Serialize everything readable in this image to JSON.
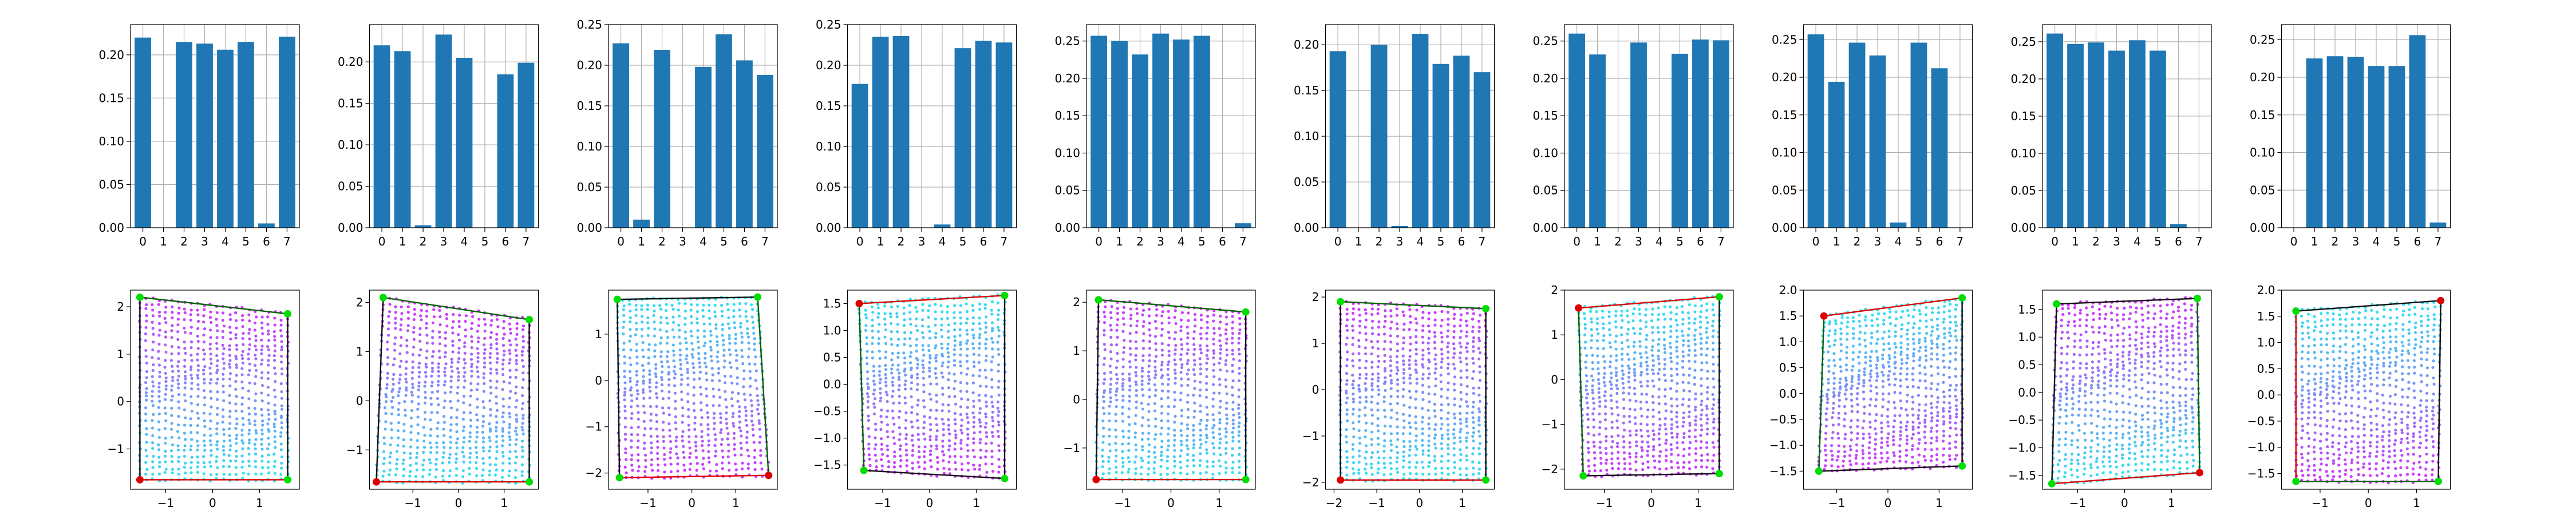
{
  "figure": {
    "background": "#ffffff",
    "bar_color": "#1f77b4",
    "grid_color": "#b0b0b0"
  },
  "chart_data": [
    {
      "type": "bar",
      "categories": [
        "0",
        "1",
        "2",
        "3",
        "4",
        "5",
        "6",
        "7"
      ],
      "values": [
        0.22,
        0,
        0.215,
        0.213,
        0.206,
        0.215,
        0.005,
        0.221
      ],
      "ylim": [
        0,
        0.235
      ],
      "yticks": [
        "0.00",
        "0.05",
        "0.10",
        "0.15",
        "0.20"
      ],
      "grid": true
    },
    {
      "type": "bar",
      "categories": [
        "0",
        "1",
        "2",
        "3",
        "4",
        "5",
        "6",
        "7"
      ],
      "values": [
        0.22,
        0.213,
        0.003,
        0.233,
        0.205,
        0,
        0.185,
        0.199
      ],
      "ylim": [
        0,
        0.245
      ],
      "yticks": [
        "0.00",
        "0.05",
        "0.10",
        "0.15",
        "0.20"
      ],
      "grid": true
    },
    {
      "type": "bar",
      "categories": [
        "0",
        "1",
        "2",
        "3",
        "4",
        "5",
        "6",
        "7"
      ],
      "values": [
        0.227,
        0.01,
        0.219,
        0,
        0.198,
        0.238,
        0.206,
        0.188
      ],
      "ylim": [
        0,
        0.25
      ],
      "yticks": [
        "0.00",
        "0.05",
        "0.10",
        "0.15",
        "0.20",
        "0.25"
      ],
      "grid": true
    },
    {
      "type": "bar",
      "categories": [
        "0",
        "1",
        "2",
        "3",
        "4",
        "5",
        "6",
        "7"
      ],
      "values": [
        0.177,
        0.235,
        0.236,
        0,
        0.004,
        0.221,
        0.23,
        0.228
      ],
      "ylim": [
        0,
        0.25
      ],
      "yticks": [
        "0.00",
        "0.05",
        "0.10",
        "0.15",
        "0.20",
        "0.25"
      ],
      "grid": true
    },
    {
      "type": "bar",
      "categories": [
        "0",
        "1",
        "2",
        "3",
        "4",
        "5",
        "6",
        "7"
      ],
      "values": [
        0.257,
        0.25,
        0.232,
        0.26,
        0.252,
        0.257,
        0,
        0.006
      ],
      "ylim": [
        0,
        0.272
      ],
      "yticks": [
        "0.00",
        "0.05",
        "0.10",
        "0.15",
        "0.20",
        "0.25"
      ],
      "grid": true
    },
    {
      "type": "bar",
      "categories": [
        "0",
        "1",
        "2",
        "3",
        "4",
        "5",
        "6",
        "7"
      ],
      "values": [
        0.193,
        0,
        0.2,
        0.002,
        0.212,
        0.179,
        0.188,
        0.17
      ],
      "ylim": [
        0,
        0.222
      ],
      "yticks": [
        "0.00",
        "0.05",
        "0.10",
        "0.15",
        "0.20"
      ],
      "grid": true
    },
    {
      "type": "bar",
      "categories": [
        "0",
        "1",
        "2",
        "3",
        "4",
        "5",
        "6",
        "7"
      ],
      "values": [
        0.26,
        0.232,
        0,
        0.248,
        0,
        0.233,
        0.252,
        0.251
      ],
      "ylim": [
        0,
        0.272
      ],
      "yticks": [
        "0.00",
        "0.05",
        "0.10",
        "0.15",
        "0.20",
        "0.25"
      ],
      "grid": true
    },
    {
      "type": "bar",
      "categories": [
        "0",
        "1",
        "2",
        "3",
        "4",
        "5",
        "6",
        "7"
      ],
      "values": [
        0.257,
        0.194,
        0.246,
        0.229,
        0.007,
        0.246,
        0.212,
        0
      ],
      "ylim": [
        0,
        0.27
      ],
      "yticks": [
        "0.00",
        "0.05",
        "0.10",
        "0.15",
        "0.20",
        "0.25"
      ],
      "grid": true
    },
    {
      "type": "bar",
      "categories": [
        "0",
        "1",
        "2",
        "3",
        "4",
        "5",
        "6",
        "7"
      ],
      "values": [
        0.261,
        0.247,
        0.249,
        0.238,
        0.252,
        0.238,
        0.005,
        0
      ],
      "ylim": [
        0,
        0.273
      ],
      "yticks": [
        "0.00",
        "0.05",
        "0.10",
        "0.15",
        "0.20",
        "0.25"
      ],
      "grid": true
    },
    {
      "type": "bar",
      "categories": [
        "0",
        "1",
        "2",
        "3",
        "4",
        "5",
        "6",
        "7"
      ],
      "values": [
        0,
        0.225,
        0.228,
        0.227,
        0.215,
        0.215,
        0.256,
        0.007
      ],
      "ylim": [
        0,
        0.27
      ],
      "yticks": [
        "0.00",
        "0.05",
        "0.10",
        "0.15",
        "0.20",
        "0.25"
      ],
      "grid": true
    },
    {
      "type": "scatter",
      "xlim": [
        -1.75,
        1.85
      ],
      "ylim": [
        -1.85,
        2.35
      ],
      "xticks": [
        -1,
        0,
        1
      ],
      "yticks": [
        -1,
        0,
        1,
        2
      ],
      "quad": [
        [
          -1.55,
          2.2
        ],
        [
          1.6,
          1.85
        ],
        [
          1.6,
          -1.65
        ],
        [
          -1.55,
          -1.65
        ]
      ],
      "colors": [
        "#d535ff",
        "#2ee5f2"
      ],
      "corners": [
        "#00dd00",
        "#00dd00",
        "#00dd00",
        "#dd0000"
      ],
      "edges": [
        "#006400",
        "#111111",
        "#dd0000",
        "#111111"
      ],
      "seed": 11
    },
    {
      "type": "scatter",
      "xlim": [
        -1.95,
        1.75
      ],
      "ylim": [
        -1.8,
        2.25
      ],
      "xticks": [
        -1,
        0,
        1
      ],
      "yticks": [
        -1,
        0,
        1,
        2
      ],
      "quad": [
        [
          -1.65,
          2.1
        ],
        [
          1.55,
          1.65
        ],
        [
          1.55,
          -1.65
        ],
        [
          -1.8,
          -1.65
        ]
      ],
      "colors": [
        "#d535ff",
        "#2ee5f2"
      ],
      "corners": [
        "#00dd00",
        "#00dd00",
        "#00dd00",
        "#dd0000"
      ],
      "edges": [
        "#006400",
        "#111111",
        "#dd0000",
        "#111111"
      ],
      "seed": 23
    },
    {
      "type": "scatter",
      "xlim": [
        -1.9,
        1.95
      ],
      "ylim": [
        -2.35,
        1.95
      ],
      "xticks": [
        -1,
        0,
        1
      ],
      "yticks": [
        -2,
        -1,
        0,
        1
      ],
      "quad": [
        [
          -1.7,
          1.75
        ],
        [
          1.5,
          1.8
        ],
        [
          1.75,
          -2.05
        ],
        [
          -1.65,
          -2.1
        ]
      ],
      "colors": [
        "#2ee5f2",
        "#d535ff"
      ],
      "corners": [
        "#00dd00",
        "#00dd00",
        "#dd0000",
        "#00dd00"
      ],
      "edges": [
        "#111111",
        "#006400",
        "#dd0000",
        "#111111"
      ],
      "seed": 37
    },
    {
      "type": "scatter",
      "xlim": [
        -1.75,
        1.85
      ],
      "ylim": [
        -1.95,
        1.75
      ],
      "xticks": [
        -1,
        0,
        1
      ],
      "yticks": [
        -1.5,
        -1.0,
        -0.5,
        0.0,
        0.5,
        1.0,
        1.5
      ],
      "ytick_labels": [
        "-1.5",
        "-1.0",
        "-0.5",
        "0.0",
        "0.5",
        "1.0",
        "1.5"
      ],
      "quad": [
        [
          -1.5,
          1.5
        ],
        [
          1.6,
          1.65
        ],
        [
          1.6,
          -1.75
        ],
        [
          -1.4,
          -1.6
        ]
      ],
      "colors": [
        "#2ee5f2",
        "#d535ff"
      ],
      "corners": [
        "#dd0000",
        "#00dd00",
        "#00dd00",
        "#00dd00"
      ],
      "edges": [
        "#dd0000",
        "#111111",
        "#111111",
        "#006400"
      ],
      "seed": 41
    },
    {
      "type": "scatter",
      "xlim": [
        -1.75,
        1.75
      ],
      "ylim": [
        -1.85,
        2.25
      ],
      "xticks": [
        -1,
        0,
        1
      ],
      "yticks": [
        -1,
        0,
        1,
        2
      ],
      "quad": [
        [
          -1.5,
          2.05
        ],
        [
          1.55,
          1.8
        ],
        [
          1.55,
          -1.65
        ],
        [
          -1.55,
          -1.65
        ]
      ],
      "colors": [
        "#d535ff",
        "#2ee5f2"
      ],
      "corners": [
        "#00dd00",
        "#00dd00",
        "#00dd00",
        "#dd0000"
      ],
      "edges": [
        "#006400",
        "#111111",
        "#dd0000",
        "#111111"
      ],
      "seed": 53
    },
    {
      "type": "scatter",
      "xlim": [
        -2.2,
        1.75
      ],
      "ylim": [
        -2.15,
        2.15
      ],
      "xticks": [
        -2,
        -1,
        0,
        1
      ],
      "yticks": [
        -2,
        -1,
        0,
        1,
        2
      ],
      "quad": [
        [
          -1.85,
          1.9
        ],
        [
          1.55,
          1.75
        ],
        [
          1.55,
          -1.95
        ],
        [
          -1.85,
          -1.95
        ]
      ],
      "colors": [
        "#d535ff",
        "#2ee5f2"
      ],
      "corners": [
        "#00dd00",
        "#00dd00",
        "#00dd00",
        "#dd0000"
      ],
      "edges": [
        "#006400",
        "#111111",
        "#dd0000",
        "#111111"
      ],
      "seed": 67
    },
    {
      "type": "scatter",
      "xlim": [
        -1.85,
        1.75
      ],
      "ylim": [
        -2.45,
        2.0
      ],
      "xticks": [
        -1,
        0,
        1
      ],
      "yticks": [
        -2,
        -1,
        0,
        1,
        2
      ],
      "quad": [
        [
          -1.55,
          1.6
        ],
        [
          1.45,
          1.85
        ],
        [
          1.45,
          -2.1
        ],
        [
          -1.45,
          -2.15
        ]
      ],
      "colors": [
        "#2ee5f2",
        "#d535ff"
      ],
      "corners": [
        "#dd0000",
        "#00dd00",
        "#00dd00",
        "#00dd00"
      ],
      "edges": [
        "#dd0000",
        "#111111",
        "#111111",
        "#006400"
      ],
      "seed": 79
    },
    {
      "type": "scatter",
      "xlim": [
        -1.65,
        1.65
      ],
      "ylim": [
        -1.85,
        2.0
      ],
      "xticks": [
        -1,
        0,
        1
      ],
      "yticks": [
        -1.5,
        -1.0,
        -0.5,
        0.0,
        0.5,
        1.0,
        1.5,
        2.0
      ],
      "ytick_labels": [
        "-1.5",
        "-1.0",
        "-0.5",
        "0.0",
        "0.5",
        "1.0",
        "1.5",
        "2.0"
      ],
      "quad": [
        [
          -1.25,
          1.5
        ],
        [
          1.45,
          1.85
        ],
        [
          1.45,
          -1.4
        ],
        [
          -1.35,
          -1.5
        ]
      ],
      "colors": [
        "#2ee5f2",
        "#d535ff"
      ],
      "corners": [
        "#dd0000",
        "#00dd00",
        "#00dd00",
        "#00dd00"
      ],
      "edges": [
        "#dd0000",
        "#111111",
        "#111111",
        "#006400"
      ],
      "seed": 83
    },
    {
      "type": "scatter",
      "xlim": [
        -1.75,
        1.85
      ],
      "ylim": [
        -1.75,
        1.85
      ],
      "xticks": [
        -1,
        0,
        1
      ],
      "yticks": [
        -1.5,
        -1.0,
        -0.5,
        0.0,
        0.5,
        1.0,
        1.5
      ],
      "ytick_labels": [
        "-1.5",
        "-1.0",
        "-0.5",
        "0.0",
        "0.5",
        "1.0",
        "1.5"
      ],
      "quad": [
        [
          -1.45,
          1.6
        ],
        [
          1.55,
          1.7
        ],
        [
          1.6,
          -1.45
        ],
        [
          -1.55,
          -1.65
        ]
      ],
      "colors": [
        "#d535ff",
        "#2ee5f2"
      ],
      "corners": [
        "#00dd00",
        "#00dd00",
        "#dd0000",
        "#00dd00"
      ],
      "edges": [
        "#111111",
        "#006400",
        "#dd0000",
        "#111111"
      ],
      "seed": 97
    },
    {
      "type": "scatter",
      "xlim": [
        -1.8,
        1.7
      ],
      "ylim": [
        -1.8,
        2.0
      ],
      "xticks": [
        -1,
        0,
        1
      ],
      "yticks": [
        -1.5,
        -1.0,
        -0.5,
        0.0,
        0.5,
        1.0,
        1.5,
        2.0
      ],
      "ytick_labels": [
        "-1.5",
        "-1.0",
        "-0.5",
        "0.0",
        "0.5",
        "1.0",
        "1.5",
        "2.0"
      ],
      "quad": [
        [
          -1.5,
          1.6
        ],
        [
          1.5,
          1.8
        ],
        [
          1.45,
          -1.65
        ],
        [
          -1.5,
          -1.65
        ]
      ],
      "colors": [
        "#2ee5f2",
        "#d535ff"
      ],
      "corners": [
        "#00dd00",
        "#dd0000",
        "#00dd00",
        "#00dd00"
      ],
      "edges": [
        "#111111",
        "#111111",
        "#006400",
        "#dd0000"
      ],
      "seed": 101
    }
  ]
}
